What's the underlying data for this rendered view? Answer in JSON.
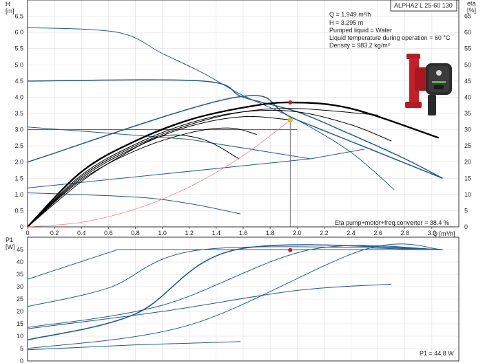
{
  "header": {
    "model": "ALPHA2 L 25-60 130",
    "h_axis": "H",
    "h_unit": "[m]",
    "eta_axis": "eta",
    "eta_unit": "[%]",
    "p1_axis": "P1",
    "p1_unit": "[W]",
    "q_axis": "Q [m³/h]"
  },
  "info": {
    "q": "Q = 1.949 m³/h",
    "h": "H = 3.295 m",
    "liquid": "Pumped liquid = Water",
    "temp": "Liquid temperature during operation = 60 °C",
    "density": "Density = 983.2 kg/m³"
  },
  "eta_note": "Eta pump+motor+freq.converter = 38.4 %",
  "p1_note": "P1 = 44.8 W",
  "colors": {
    "curve": "#1f5a92",
    "bold": "#000000",
    "system": "#f08080",
    "duty": "#f2c300",
    "red": "#e01010",
    "pump_body": "#c81e2a"
  },
  "chart_data": [
    {
      "type": "line",
      "name": "head",
      "xlim": [
        0,
        3.2
      ],
      "ylim": [
        0,
        7
      ],
      "y2lim": [
        0,
        70
      ],
      "x_ticks": [
        0,
        0.2,
        0.4,
        0.6,
        0.8,
        1.0,
        1.2,
        1.4,
        1.6,
        1.8,
        2.0,
        2.2,
        2.4,
        2.6,
        2.8,
        3.0
      ],
      "x_tick_labels": [
        "0",
        "0.2",
        "0.4",
        "0.6",
        "0.8",
        "1.0",
        "1.2",
        "1.4",
        "1.6",
        "1.8",
        "2.0",
        "2.2",
        "2.4",
        "2.6",
        "2.8",
        "3.0"
      ],
      "y_ticks": [
        0,
        0.5,
        1.0,
        1.5,
        2.0,
        2.5,
        3.0,
        3.5,
        4.0,
        4.5,
        5.0,
        5.5,
        6.0,
        6.5
      ],
      "y_tick_labels": [
        "0",
        "0.5",
        "1.0",
        "1.5",
        "2.0",
        "2.5",
        "3.0",
        "3.5",
        "4.0",
        "4.5",
        "5.0",
        "5.5",
        "6.0",
        "6.5"
      ],
      "y2_ticks": [
        0,
        5,
        10,
        15,
        20,
        25,
        30,
        35,
        40,
        45,
        50,
        55,
        60,
        65
      ],
      "y2_tick_labels": [
        "0",
        "5",
        "10",
        "15",
        "20",
        "25",
        "30",
        "35",
        "40",
        "45",
        "50",
        "55",
        "60",
        "65"
      ],
      "series": [
        {
          "role": "blue",
          "x": [
            0,
            0.67,
            1.0,
            1.3,
            1.6,
            2.0,
            2.4,
            2.72
          ],
          "y": [
            6.15,
            6.0,
            5.35,
            4.75,
            4.05,
            3.3,
            2.3,
            1.15
          ]
        },
        {
          "role": "blue",
          "x": [
            0,
            1.3,
            1.6,
            2.0,
            2.4,
            2.8,
            3.08
          ],
          "y": [
            4.5,
            4.5,
            4.0,
            3.55,
            2.85,
            2.1,
            1.5
          ]
        },
        {
          "role": "blue",
          "x": [
            0,
            1.55,
            2.0,
            3.08
          ],
          "y": [
            2.0,
            4.0,
            3.3,
            1.5
          ]
        },
        {
          "role": "blue",
          "x": [
            0,
            1.2,
            2.1
          ],
          "y": [
            3.08,
            2.7,
            2.1
          ]
        },
        {
          "role": "blue",
          "x": [
            0,
            2.1
          ],
          "y": [
            1.2,
            2.1
          ]
        },
        {
          "role": "blue",
          "x": [
            2.1,
            2.5
          ],
          "y": [
            2.1,
            2.4
          ]
        },
        {
          "role": "blue",
          "x": [
            0,
            2.0
          ],
          "y": [
            3.0,
            3.0
          ]
        },
        {
          "role": "blue",
          "x": [
            0,
            0.8,
            1.2,
            1.58
          ],
          "y": [
            1.05,
            0.92,
            0.72,
            0.4
          ]
        },
        {
          "role": "eta",
          "x": [
            0,
            0.4,
            0.8,
            1.2,
            1.6,
            1.949,
            2.4,
            3.05
          ],
          "y": [
            0,
            17.0,
            26.5,
            33.0,
            36.8,
            38.4,
            36.5,
            27.5
          ]
        },
        {
          "role": "eta",
          "x": [
            0,
            0.4,
            0.8,
            1.2,
            1.6,
            2.0,
            2.4,
            2.7
          ],
          "y": [
            0,
            16.0,
            25.5,
            32.0,
            35.5,
            35.5,
            31.5,
            26.5
          ]
        },
        {
          "role": "eta",
          "x": [
            0,
            0.4,
            0.8,
            1.2,
            1.6,
            2.0,
            2.6
          ],
          "y": [
            0,
            15.5,
            25.0,
            31.5,
            35.5,
            36.5,
            34.5
          ]
        },
        {
          "role": "eta",
          "x": [
            0,
            0.4,
            0.8,
            1.2,
            1.6,
            1.95
          ],
          "y": [
            0,
            15.0,
            24.5,
            31.0,
            34.0,
            33.0
          ]
        },
        {
          "role": "eta",
          "x": [
            0,
            0.4,
            0.8,
            1.2,
            1.5,
            1.7
          ],
          "y": [
            0,
            14.5,
            23.5,
            29.0,
            30.5,
            28.5
          ]
        },
        {
          "role": "eta",
          "x": [
            0,
            0.4,
            0.7,
            1.0,
            1.3,
            1.57
          ],
          "y": [
            0,
            14.0,
            22.0,
            28.0,
            27.0,
            21.0
          ]
        },
        {
          "role": "system",
          "x": [
            0,
            0.4,
            0.8,
            1.2,
            1.6,
            1.949
          ],
          "y": [
            0,
            0.14,
            0.55,
            1.23,
            2.2,
            3.295
          ]
        }
      ],
      "duty_point": {
        "x": 1.949,
        "y": 3.295
      },
      "eta_point": {
        "x": 1.949,
        "y2": 38.4
      }
    },
    {
      "type": "line",
      "name": "power",
      "xlim": [
        0,
        3.2
      ],
      "ylim": [
        0,
        50
      ],
      "y_ticks": [
        0,
        5,
        10,
        15,
        20,
        25,
        30,
        35,
        40,
        45
      ],
      "y_tick_labels": [
        "0",
        "5",
        "10",
        "15",
        "20",
        "25",
        "30",
        "35",
        "40",
        "45"
      ],
      "series": [
        {
          "role": "blue",
          "x": [
            0,
            0.67,
            3.08
          ],
          "y": [
            33.0,
            45.0,
            45.0
          ]
        },
        {
          "role": "blue",
          "x": [
            0,
            0.6,
            1.3,
            3.08
          ],
          "y": [
            22.0,
            29.5,
            45.0,
            45.0
          ]
        },
        {
          "role": "blue",
          "x": [
            0,
            0.8,
            1.55,
            3.08
          ],
          "y": [
            8.5,
            19.0,
            45.0,
            45.0
          ]
        },
        {
          "role": "blue",
          "x": [
            0,
            1.0,
            2.1,
            3.08
          ],
          "y": [
            13.5,
            22.5,
            45.0,
            45.0
          ]
        },
        {
          "role": "blue",
          "x": [
            0,
            1.2,
            2.5,
            3.08
          ],
          "y": [
            5.0,
            14.5,
            45.0,
            45.0
          ]
        },
        {
          "role": "blue",
          "x": [
            0,
            1.0,
            2.0,
            2.7
          ],
          "y": [
            13.0,
            20.0,
            28.5,
            31.0
          ]
        },
        {
          "role": "blue",
          "x": [
            0,
            0.8,
            1.58
          ],
          "y": [
            4.5,
            6.5,
            7.8
          ]
        }
      ],
      "point": {
        "x": 1.949,
        "y": 44.8
      }
    }
  ]
}
